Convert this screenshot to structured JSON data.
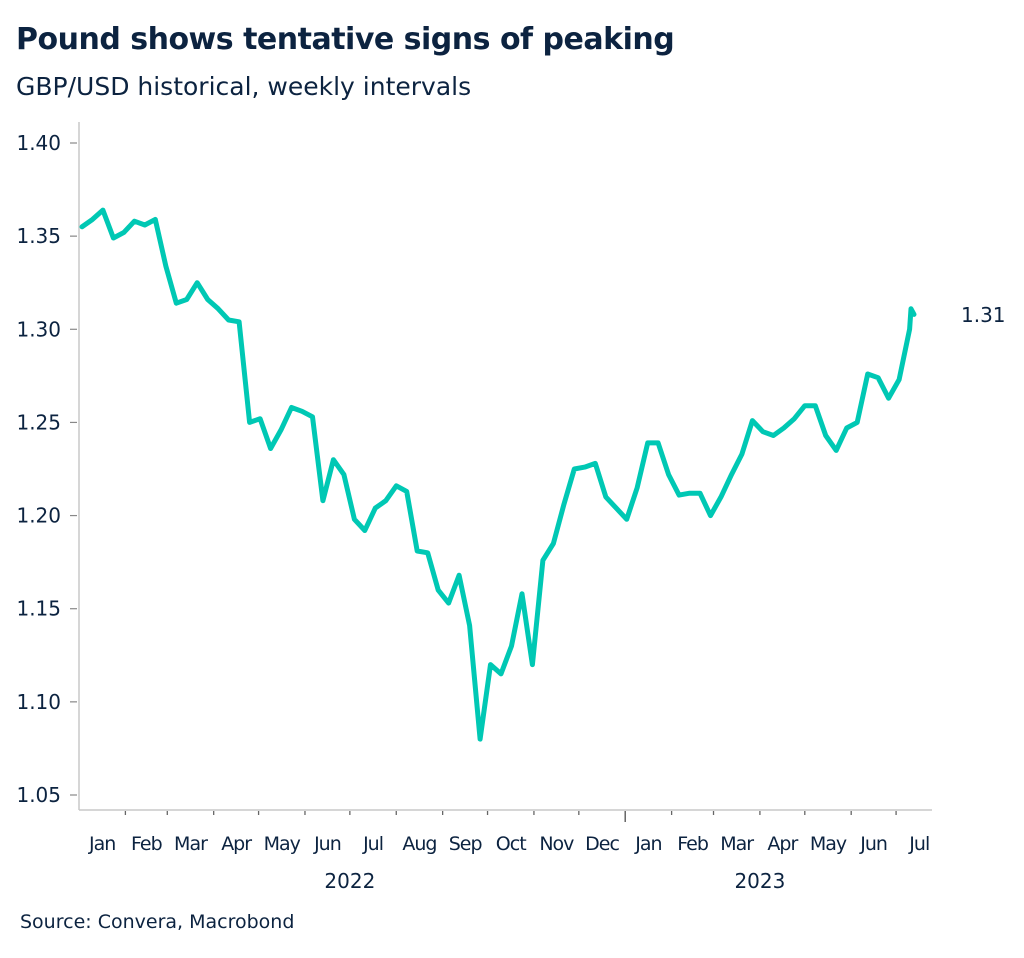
{
  "title": "Pound shows tentative signs of peaking",
  "subtitle": "GBP/USD historical, weekly intervals",
  "source": "Source: Convera, Macrobond",
  "colors": {
    "line": "#00c8b4",
    "text": "#0c2340",
    "axis": "#c8c8c8"
  },
  "chart_data": {
    "type": "line",
    "title": "Pound shows tentative signs of peaking",
    "subtitle": "GBP/USD historical, weekly intervals",
    "xlabel": "",
    "ylabel": "",
    "ylim": [
      1.05,
      1.4
    ],
    "xlim": [
      "2022-01-01",
      "2023-07-25"
    ],
    "y_ticks": [
      "1.05",
      "1.10",
      "1.15",
      "1.20",
      "1.25",
      "1.30",
      "1.35",
      "1.40"
    ],
    "x_month_labels": [
      "Jan",
      "Feb",
      "Mar",
      "Apr",
      "May",
      "Jun",
      "Jul",
      "Aug",
      "Sep",
      "Oct",
      "Nov",
      "Dec",
      "Jan",
      "Feb",
      "Mar",
      "Apr",
      "May",
      "Jun",
      "Jul"
    ],
    "x_year_labels": [
      {
        "label": "2022",
        "month_index": 6
      },
      {
        "label": "2023",
        "month_index": 15
      }
    ],
    "grid": false,
    "legend": "none",
    "end_label": "1.31",
    "series": [
      {
        "x": [
          "2022-01-03",
          "2022-01-10",
          "2022-01-17",
          "2022-01-24",
          "2022-01-31",
          "2022-02-07",
          "2022-02-14",
          "2022-02-21",
          "2022-02-28",
          "2022-03-07",
          "2022-03-14",
          "2022-03-21",
          "2022-03-28",
          "2022-04-04",
          "2022-04-11",
          "2022-04-18",
          "2022-04-25",
          "2022-05-02",
          "2022-05-09",
          "2022-05-16",
          "2022-05-23",
          "2022-05-30",
          "2022-06-06",
          "2022-06-13",
          "2022-06-20",
          "2022-06-27",
          "2022-07-04",
          "2022-07-11",
          "2022-07-18",
          "2022-07-25",
          "2022-08-01",
          "2022-08-08",
          "2022-08-15",
          "2022-08-22",
          "2022-08-29",
          "2022-09-05",
          "2022-09-12",
          "2022-09-19",
          "2022-09-26",
          "2022-10-03",
          "2022-10-10",
          "2022-10-17",
          "2022-10-24",
          "2022-10-31",
          "2022-11-07",
          "2022-11-14",
          "2022-11-21",
          "2022-11-28",
          "2022-12-05",
          "2022-12-12",
          "2022-12-19",
          "2022-12-26",
          "2023-01-02",
          "2023-01-09",
          "2023-01-16",
          "2023-01-23",
          "2023-01-30",
          "2023-02-06",
          "2023-02-13",
          "2023-02-20",
          "2023-02-27",
          "2023-03-06",
          "2023-03-13",
          "2023-03-20",
          "2023-03-27",
          "2023-04-03",
          "2023-04-10",
          "2023-04-17",
          "2023-04-24",
          "2023-05-01",
          "2023-05-08",
          "2023-05-15",
          "2023-05-22",
          "2023-05-29",
          "2023-06-05",
          "2023-06-12",
          "2023-06-19",
          "2023-06-26",
          "2023-07-03",
          "2023-07-10",
          "2023-07-11",
          "2023-07-13"
        ],
        "y": [
          1.355,
          1.359,
          1.364,
          1.349,
          1.352,
          1.358,
          1.356,
          1.359,
          1.334,
          1.314,
          1.316,
          1.325,
          1.316,
          1.311,
          1.305,
          1.304,
          1.25,
          1.252,
          1.236,
          1.246,
          1.258,
          1.256,
          1.253,
          1.208,
          1.23,
          1.222,
          1.198,
          1.192,
          1.204,
          1.208,
          1.216,
          1.213,
          1.181,
          1.18,
          1.16,
          1.153,
          1.168,
          1.141,
          1.08,
          1.12,
          1.115,
          1.13,
          1.158,
          1.12,
          1.176,
          1.185,
          1.206,
          1.225,
          1.226,
          1.228,
          1.21,
          1.204,
          1.198,
          1.215,
          1.239,
          1.239,
          1.222,
          1.211,
          1.212,
          1.212,
          1.2,
          1.21,
          1.222,
          1.233,
          1.251,
          1.245,
          1.243,
          1.247,
          1.252,
          1.259,
          1.259,
          1.243,
          1.235,
          1.247,
          1.25,
          1.276,
          1.274,
          1.263,
          1.273,
          1.3,
          1.311,
          1.308
        ]
      }
    ]
  }
}
